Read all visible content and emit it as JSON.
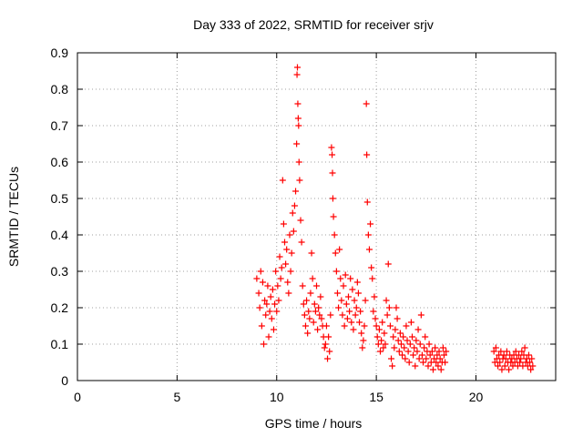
{
  "chart_data": {
    "type": "scatter",
    "title": "Day 333 of 2022, SRMTID for receiver srjv",
    "xlabel": "GPS time / hours",
    "ylabel": "SRMTID / TECUs",
    "xlim": [
      0,
      24
    ],
    "ylim": [
      0,
      0.9
    ],
    "x_ticks": [
      0,
      5,
      10,
      15,
      20
    ],
    "y_ticks": [
      0,
      0.1,
      0.2,
      0.3,
      0.4,
      0.5,
      0.6,
      0.7,
      0.8,
      0.9
    ],
    "grid": true,
    "marker": "+",
    "color": "#ff0000",
    "series": [
      {
        "name": "SRMTID",
        "points": [
          [
            9.0,
            0.28
          ],
          [
            9.1,
            0.24
          ],
          [
            9.15,
            0.2
          ],
          [
            9.2,
            0.3
          ],
          [
            9.25,
            0.15
          ],
          [
            9.3,
            0.27
          ],
          [
            9.35,
            0.1
          ],
          [
            9.4,
            0.22
          ],
          [
            9.45,
            0.18
          ],
          [
            9.5,
            0.21
          ],
          [
            9.55,
            0.26
          ],
          [
            9.6,
            0.12
          ],
          [
            9.65,
            0.19
          ],
          [
            9.7,
            0.23
          ],
          [
            9.75,
            0.17
          ],
          [
            9.8,
            0.25
          ],
          [
            9.85,
            0.14
          ],
          [
            9.9,
            0.21
          ],
          [
            9.95,
            0.3
          ],
          [
            10.0,
            0.19
          ],
          [
            10.05,
            0.26
          ],
          [
            10.1,
            0.22
          ],
          [
            10.15,
            0.34
          ],
          [
            10.2,
            0.28
          ],
          [
            10.25,
            0.31
          ],
          [
            10.3,
            0.55
          ],
          [
            10.35,
            0.43
          ],
          [
            10.4,
            0.38
          ],
          [
            10.45,
            0.32
          ],
          [
            10.5,
            0.36
          ],
          [
            10.55,
            0.27
          ],
          [
            10.6,
            0.24
          ],
          [
            10.65,
            0.4
          ],
          [
            10.7,
            0.3
          ],
          [
            10.75,
            0.35
          ],
          [
            10.8,
            0.46
          ],
          [
            10.85,
            0.41
          ],
          [
            10.9,
            0.48
          ],
          [
            10.95,
            0.52
          ],
          [
            11.0,
            0.65
          ],
          [
            11.02,
            0.84
          ],
          [
            11.04,
            0.86
          ],
          [
            11.06,
            0.76
          ],
          [
            11.08,
            0.72
          ],
          [
            11.1,
            0.7
          ],
          [
            11.12,
            0.6
          ],
          [
            11.15,
            0.55
          ],
          [
            11.2,
            0.44
          ],
          [
            11.25,
            0.38
          ],
          [
            11.3,
            0.26
          ],
          [
            11.35,
            0.21
          ],
          [
            11.4,
            0.18
          ],
          [
            11.45,
            0.15
          ],
          [
            11.5,
            0.22
          ],
          [
            11.55,
            0.13
          ],
          [
            11.6,
            0.19
          ],
          [
            11.65,
            0.17
          ],
          [
            11.7,
            0.24
          ],
          [
            11.75,
            0.35
          ],
          [
            11.8,
            0.28
          ],
          [
            11.85,
            0.16
          ],
          [
            11.9,
            0.21
          ],
          [
            11.95,
            0.19
          ],
          [
            12.0,
            0.26
          ],
          [
            12.05,
            0.14
          ],
          [
            12.1,
            0.2
          ],
          [
            12.15,
            0.18
          ],
          [
            12.2,
            0.23
          ],
          [
            12.25,
            0.17
          ],
          [
            12.3,
            0.15
          ],
          [
            12.35,
            0.12
          ],
          [
            12.4,
            0.09
          ],
          [
            12.45,
            0.1
          ],
          [
            12.5,
            0.15
          ],
          [
            12.55,
            0.06
          ],
          [
            12.6,
            0.12
          ],
          [
            12.65,
            0.08
          ],
          [
            12.7,
            0.18
          ],
          [
            12.75,
            0.64
          ],
          [
            12.78,
            0.62
          ],
          [
            12.8,
            0.57
          ],
          [
            12.82,
            0.5
          ],
          [
            12.85,
            0.45
          ],
          [
            12.9,
            0.4
          ],
          [
            12.95,
            0.35
          ],
          [
            13.0,
            0.3
          ],
          [
            13.05,
            0.24
          ],
          [
            13.1,
            0.2
          ],
          [
            13.15,
            0.36
          ],
          [
            13.2,
            0.28
          ],
          [
            13.25,
            0.22
          ],
          [
            13.3,
            0.18
          ],
          [
            13.35,
            0.26
          ],
          [
            13.4,
            0.15
          ],
          [
            13.45,
            0.29
          ],
          [
            13.5,
            0.21
          ],
          [
            13.55,
            0.17
          ],
          [
            13.6,
            0.23
          ],
          [
            13.65,
            0.19
          ],
          [
            13.7,
            0.28
          ],
          [
            13.75,
            0.16
          ],
          [
            13.8,
            0.25
          ],
          [
            13.85,
            0.14
          ],
          [
            13.9,
            0.22
          ],
          [
            13.95,
            0.18
          ],
          [
            14.0,
            0.2
          ],
          [
            14.05,
            0.27
          ],
          [
            14.1,
            0.24
          ],
          [
            14.15,
            0.16
          ],
          [
            14.2,
            0.19
          ],
          [
            14.25,
            0.13
          ],
          [
            14.3,
            0.09
          ],
          [
            14.35,
            0.11
          ],
          [
            14.4,
            0.15
          ],
          [
            14.45,
            0.22
          ],
          [
            14.5,
            0.76
          ],
          [
            14.52,
            0.62
          ],
          [
            14.55,
            0.49
          ],
          [
            14.6,
            0.4
          ],
          [
            14.65,
            0.36
          ],
          [
            14.7,
            0.43
          ],
          [
            14.75,
            0.31
          ],
          [
            14.8,
            0.28
          ],
          [
            14.85,
            0.19
          ],
          [
            14.9,
            0.23
          ],
          [
            14.95,
            0.17
          ],
          [
            15.0,
            0.15
          ],
          [
            15.05,
            0.12
          ],
          [
            15.1,
            0.1
          ],
          [
            15.15,
            0.14
          ],
          [
            15.2,
            0.08
          ],
          [
            15.25,
            0.11
          ],
          [
            15.3,
            0.16
          ],
          [
            15.35,
            0.09
          ],
          [
            15.4,
            0.13
          ],
          [
            15.45,
            0.1
          ],
          [
            15.5,
            0.22
          ],
          [
            15.55,
            0.18
          ],
          [
            15.6,
            0.32
          ],
          [
            15.65,
            0.2
          ],
          [
            15.7,
            0.15
          ],
          [
            15.75,
            0.06
          ],
          [
            15.8,
            0.04
          ],
          [
            15.85,
            0.12
          ],
          [
            15.9,
            0.09
          ],
          [
            15.95,
            0.14
          ],
          [
            16.0,
            0.2
          ],
          [
            16.05,
            0.17
          ],
          [
            16.1,
            0.11
          ],
          [
            16.15,
            0.08
          ],
          [
            16.2,
            0.13
          ],
          [
            16.25,
            0.1
          ],
          [
            16.3,
            0.07
          ],
          [
            16.35,
            0.12
          ],
          [
            16.4,
            0.09
          ],
          [
            16.45,
            0.06
          ],
          [
            16.5,
            0.15
          ],
          [
            16.55,
            0.11
          ],
          [
            16.6,
            0.08
          ],
          [
            16.65,
            0.05
          ],
          [
            16.7,
            0.1
          ],
          [
            16.75,
            0.16
          ],
          [
            16.8,
            0.12
          ],
          [
            16.85,
            0.07
          ],
          [
            16.9,
            0.09
          ],
          [
            16.95,
            0.04
          ],
          [
            17.0,
            0.11
          ],
          [
            17.05,
            0.08
          ],
          [
            17.1,
            0.14
          ],
          [
            17.15,
            0.06
          ],
          [
            17.2,
            0.1
          ],
          [
            17.25,
            0.18
          ],
          [
            17.3,
            0.07
          ],
          [
            17.35,
            0.05
          ],
          [
            17.4,
            0.09
          ],
          [
            17.45,
            0.12
          ],
          [
            17.5,
            0.06
          ],
          [
            17.55,
            0.08
          ],
          [
            17.6,
            0.04
          ],
          [
            17.65,
            0.1
          ],
          [
            17.7,
            0.07
          ],
          [
            17.75,
            0.05
          ],
          [
            17.8,
            0.08
          ],
          [
            17.85,
            0.03
          ],
          [
            17.9,
            0.06
          ],
          [
            17.95,
            0.09
          ],
          [
            18.0,
            0.05
          ],
          [
            18.05,
            0.07
          ],
          [
            18.1,
            0.04
          ],
          [
            18.15,
            0.08
          ],
          [
            18.2,
            0.06
          ],
          [
            18.25,
            0.03
          ],
          [
            18.3,
            0.05
          ],
          [
            18.35,
            0.09
          ],
          [
            18.4,
            0.07
          ],
          [
            18.45,
            0.05
          ],
          [
            18.5,
            0.08
          ],
          [
            20.9,
            0.08
          ],
          [
            20.95,
            0.05
          ],
          [
            21.0,
            0.09
          ],
          [
            21.05,
            0.06
          ],
          [
            21.1,
            0.04
          ],
          [
            21.15,
            0.07
          ],
          [
            21.2,
            0.05
          ],
          [
            21.25,
            0.08
          ],
          [
            21.3,
            0.03
          ],
          [
            21.35,
            0.06
          ],
          [
            21.4,
            0.07
          ],
          [
            21.45,
            0.04
          ],
          [
            21.5,
            0.06
          ],
          [
            21.55,
            0.08
          ],
          [
            21.6,
            0.05
          ],
          [
            21.65,
            0.03
          ],
          [
            21.7,
            0.07
          ],
          [
            21.75,
            0.05
          ],
          [
            21.8,
            0.06
          ],
          [
            21.85,
            0.04
          ],
          [
            21.9,
            0.07
          ],
          [
            21.95,
            0.05
          ],
          [
            22.0,
            0.08
          ],
          [
            22.05,
            0.06
          ],
          [
            22.1,
            0.04
          ],
          [
            22.15,
            0.07
          ],
          [
            22.2,
            0.05
          ],
          [
            22.25,
            0.06
          ],
          [
            22.3,
            0.08
          ],
          [
            22.35,
            0.04
          ],
          [
            22.4,
            0.07
          ],
          [
            22.45,
            0.09
          ],
          [
            22.5,
            0.05
          ],
          [
            22.55,
            0.06
          ],
          [
            22.6,
            0.04
          ],
          [
            22.65,
            0.07
          ],
          [
            22.7,
            0.05
          ],
          [
            22.75,
            0.03
          ],
          [
            22.8,
            0.06
          ],
          [
            22.85,
            0.04
          ]
        ]
      }
    ]
  }
}
